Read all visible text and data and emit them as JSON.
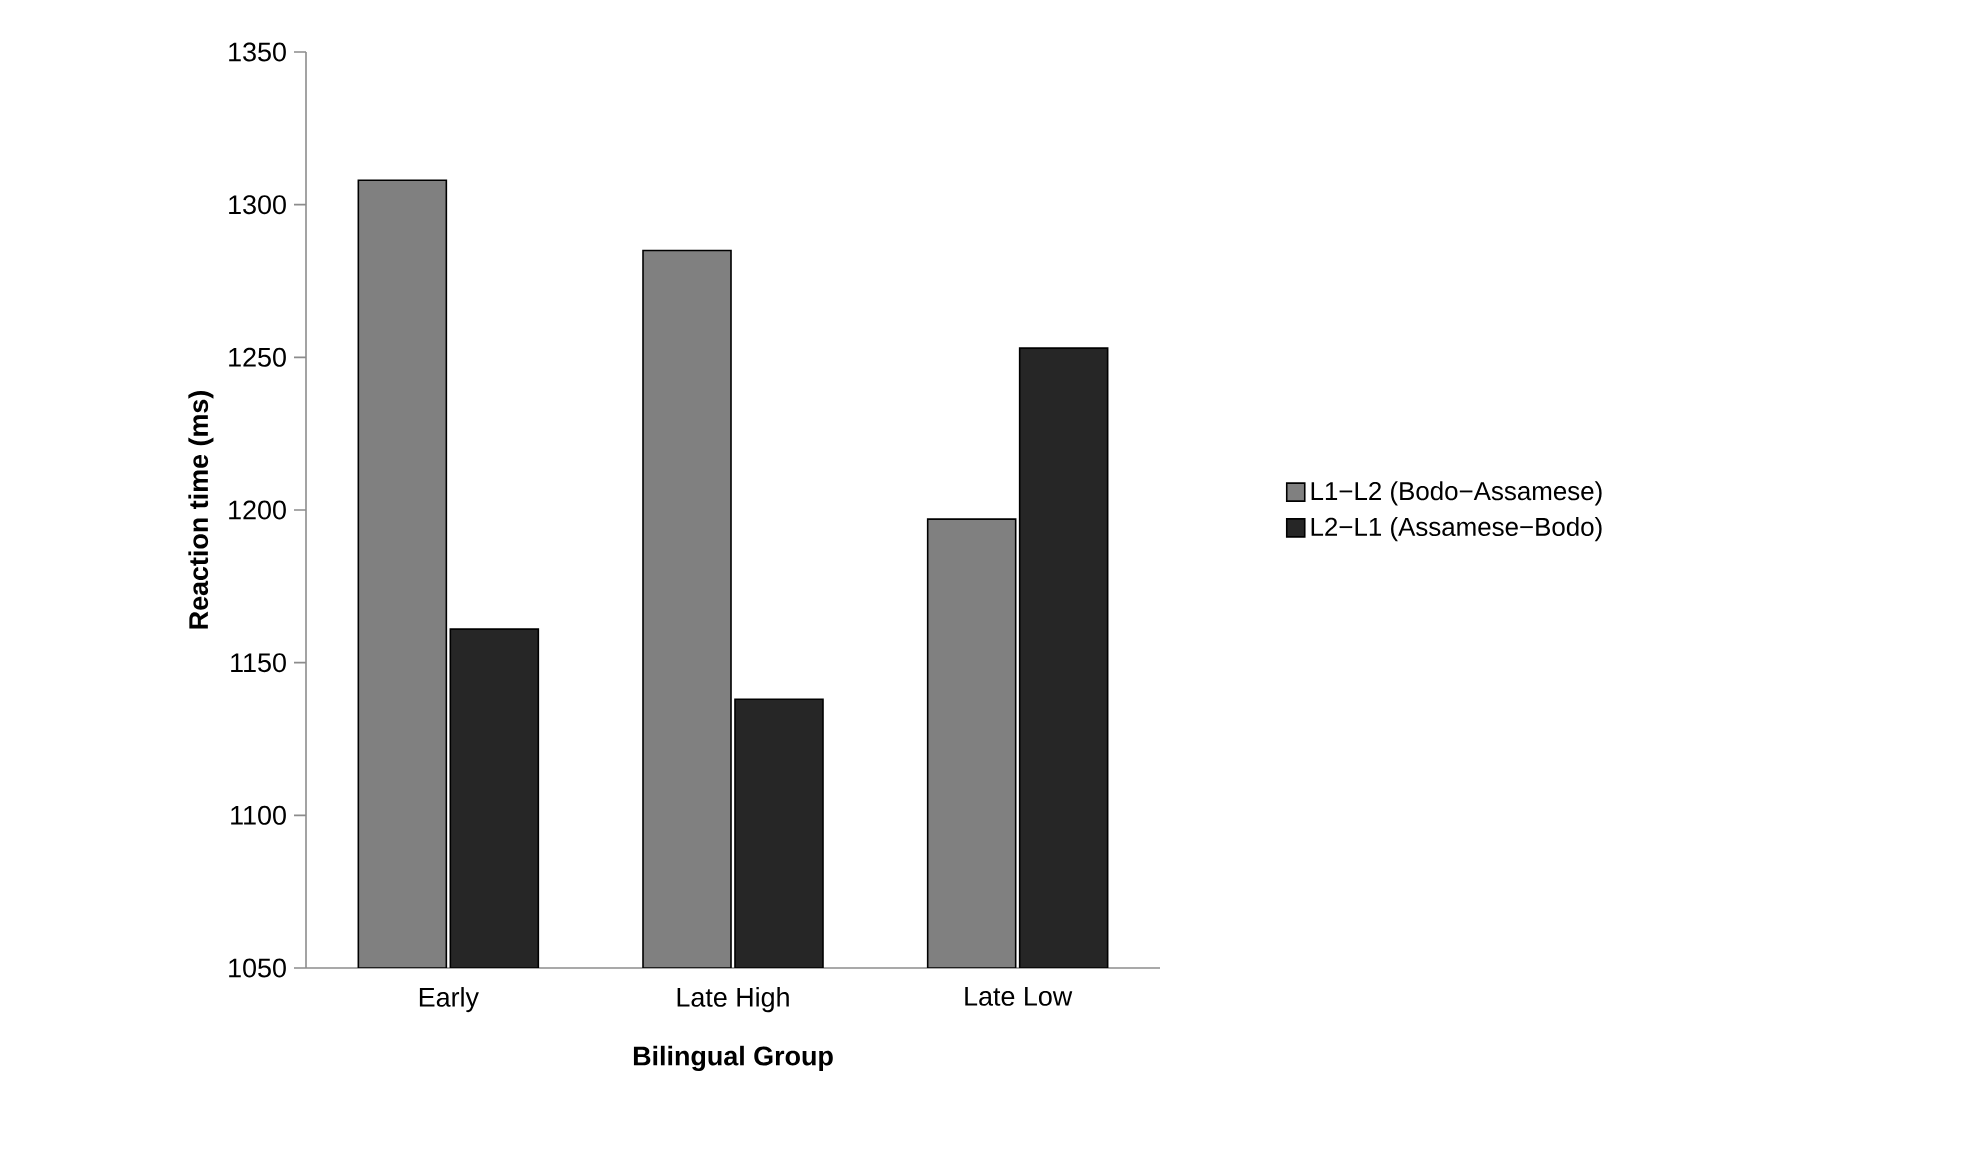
{
  "chart_data": {
    "type": "bar",
    "xlabel": "Bilingual Group",
    "ylabel": "Reaction time (ms)",
    "categories": [
      "Early",
      "Late High",
      "Late Low"
    ],
    "series": [
      {
        "name": "L1−L2 (Bodo−Assamese)",
        "color": "#808080",
        "values": [
          1308,
          1285,
          1197
        ]
      },
      {
        "name": "L2−L1 (Assamese−Bodo)",
        "color": "#262626",
        "values": [
          1161,
          1138,
          1253
        ]
      }
    ],
    "ylim": [
      1050,
      1350
    ],
    "yticks": [
      1050,
      1100,
      1150,
      1200,
      1250,
      1300,
      1350
    ],
    "legend": "right"
  }
}
